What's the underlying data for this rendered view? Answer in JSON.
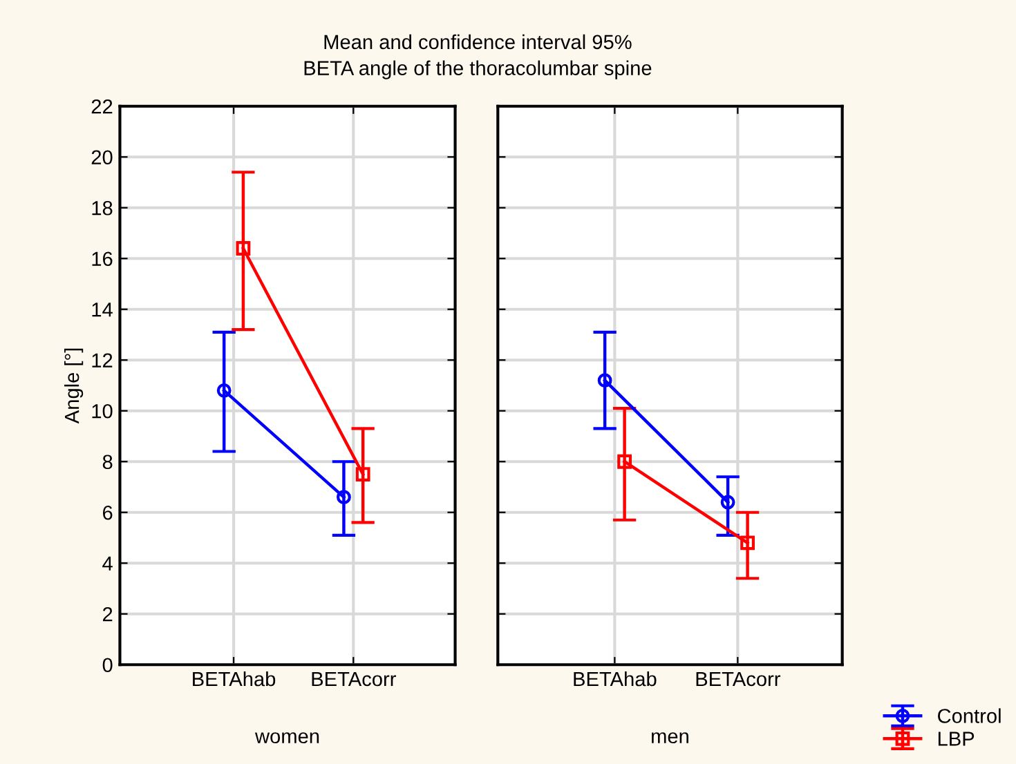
{
  "chart_data": [
    {
      "type": "line",
      "title": "Mean and confidence interval 95%",
      "subtitle": "BETA angle of the thoracolumbar spine",
      "xlabel": "women",
      "ylabel": "Angle [°]",
      "categories": [
        "BETAhab",
        "BETAcorr"
      ],
      "ylim": [
        0,
        22
      ],
      "yticks": [
        0,
        2,
        4,
        6,
        8,
        10,
        12,
        14,
        16,
        18,
        20,
        22
      ],
      "grid": true,
      "legend": "bottom right",
      "series": [
        {
          "name": "Control",
          "color": "#0000ff",
          "marker": "circle",
          "values": [
            10.8,
            6.6
          ],
          "errors": [
            [
              8.4,
              13.1
            ],
            [
              5.1,
              8.0
            ]
          ]
        },
        {
          "name": "LBP",
          "color": "#ff0000",
          "marker": "square",
          "values": [
            16.4,
            7.5
          ],
          "errors": [
            [
              13.2,
              19.4
            ],
            [
              5.6,
              9.3
            ]
          ]
        }
      ]
    },
    {
      "type": "line",
      "xlabel": "men",
      "categories": [
        "BETAhab",
        "BETAcorr"
      ],
      "ylim": [
        0,
        22
      ],
      "yticks": [
        0,
        2,
        4,
        6,
        8,
        10,
        12,
        14,
        16,
        18,
        20,
        22
      ],
      "tick_labels": "x",
      "grid": true,
      "legend": "bottom right",
      "series": [
        {
          "name": "Control",
          "color": "#0000ff",
          "marker": "circle",
          "values": [
            11.2,
            6.4
          ],
          "errors": [
            [
              9.3,
              13.1
            ],
            [
              5.1,
              7.4
            ]
          ]
        },
        {
          "name": "LBP",
          "color": "#ff0000",
          "marker": "square",
          "values": [
            8.0,
            4.8
          ],
          "errors": [
            [
              5.7,
              10.1
            ],
            [
              3.4,
              6.0
            ]
          ]
        }
      ]
    }
  ]
}
